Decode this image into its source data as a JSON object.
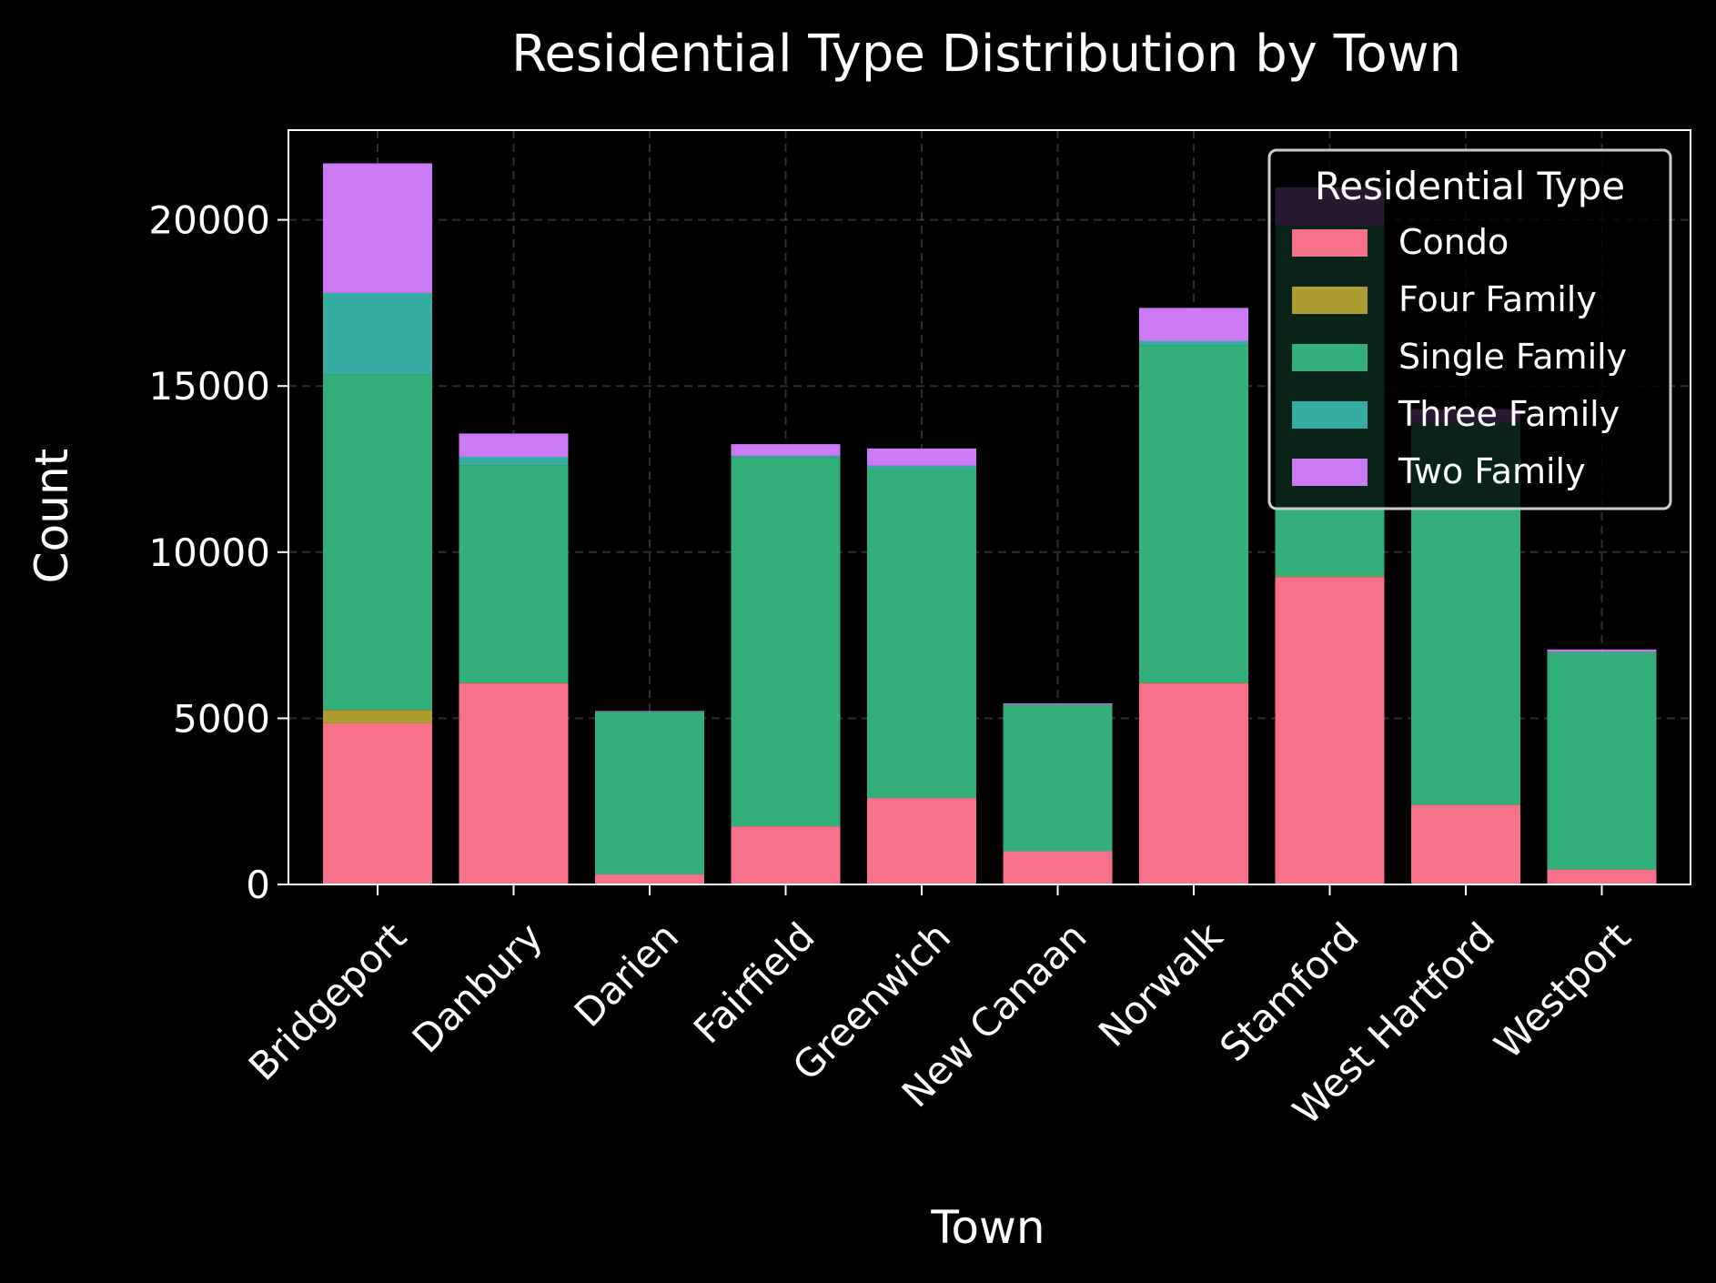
{
  "chart_data": {
    "type": "bar",
    "stacked": true,
    "title": "Residential Type Distribution by Town",
    "xlabel": "Town",
    "ylabel": "Count",
    "ylim": [
      0,
      22700
    ],
    "yticks": [
      0,
      5000,
      10000,
      15000,
      20000
    ],
    "grid": true,
    "legend": {
      "title": "Residential Type",
      "placement": "top-right"
    },
    "categories": [
      "Bridgeport",
      "Danbury",
      "Darien",
      "Fairfield",
      "Greenwich",
      "New Canaan",
      "Norwalk",
      "Stamford",
      "West Hartford",
      "Westport"
    ],
    "series": [
      {
        "name": "Condo",
        "color": "#f77189",
        "values": [
          4850,
          6050,
          300,
          1750,
          2600,
          1000,
          6050,
          9250,
          2400,
          450
        ]
      },
      {
        "name": "Four Family",
        "color": "#ae9d31",
        "values": [
          400,
          20,
          0,
          0,
          0,
          0,
          20,
          30,
          0,
          0
        ]
      },
      {
        "name": "Single Family",
        "color": "#33b07a",
        "values": [
          10100,
          6550,
          4900,
          11100,
          9900,
          4400,
          10150,
          10550,
          11500,
          6550
        ]
      },
      {
        "name": "Three Family",
        "color": "#36ada4",
        "values": [
          2450,
          250,
          0,
          50,
          100,
          10,
          130,
          0,
          0,
          0
        ]
      },
      {
        "name": "Two Family",
        "color": "#cc7af4",
        "values": [
          3900,
          700,
          20,
          350,
          520,
          40,
          1000,
          1150,
          400,
          70
        ]
      }
    ]
  }
}
